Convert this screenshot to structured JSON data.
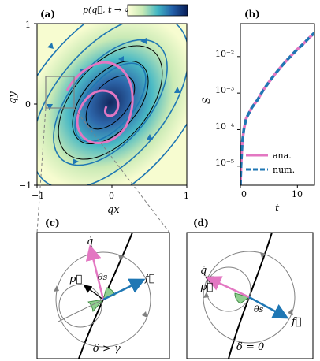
{
  "panels": {
    "a": {
      "label": "(a)",
      "colorbar_label": "p(q⃗, t → ∞)",
      "xlabel": "qx",
      "ylabel": "qy",
      "xticks": [
        "−1",
        "0",
        "1"
      ],
      "yticks": [
        "1",
        "0",
        "−1"
      ]
    },
    "b": {
      "label": "(b)",
      "xlabel": "t",
      "ylabel": "S",
      "xticks": [
        "0",
        "10"
      ],
      "yticks": [
        "10⁻²",
        "10⁻³",
        "10⁻⁴",
        "10⁻⁵"
      ],
      "legend": [
        {
          "label": "ana.",
          "color": "#e377c2",
          "style": "solid"
        },
        {
          "label": "num.",
          "color": "#1f77b4",
          "style": "dashed"
        }
      ]
    },
    "c": {
      "label": "(c)",
      "q_dot": "q̇",
      "p": "p⃗",
      "f": "f⃗",
      "theta": "θs",
      "condition": "δ > γ"
    },
    "d": {
      "label": "(d)",
      "q_dot": "q̇",
      "p": "p⃗",
      "f": "f⃗",
      "theta": "θs",
      "condition": "δ = 0"
    }
  },
  "colors": {
    "pink": "#e377c2",
    "blue": "#1f77b4",
    "green": "#8fce8f",
    "gray": "#808080"
  },
  "chart_data": {
    "type": "line",
    "title": "",
    "xlabel": "t",
    "ylabel": "S",
    "yscale": "log",
    "xlim": [
      0,
      13
    ],
    "ylim": [
      3e-06,
      0.08
    ],
    "series": [
      {
        "name": "ana.",
        "x": [
          0,
          0.1,
          0.3,
          0.6,
          1,
          2,
          3,
          4,
          5,
          6,
          7,
          8,
          9,
          10,
          11,
          12,
          13
        ],
        "y": [
          3e-06,
          1e-05,
          4e-05,
          0.0001,
          0.0002,
          0.0004,
          0.00065,
          0.0012,
          0.002,
          0.0032,
          0.005,
          0.0075,
          0.011,
          0.016,
          0.022,
          0.032,
          0.045
        ]
      },
      {
        "name": "num.",
        "x": [
          0,
          0.1,
          0.3,
          0.6,
          1,
          2,
          3,
          4,
          5,
          6,
          7,
          8,
          9,
          10,
          11,
          12,
          13
        ],
        "y": [
          3e-06,
          1e-05,
          4e-05,
          0.0001,
          0.0002,
          0.0004,
          0.00065,
          0.0012,
          0.002,
          0.0032,
          0.005,
          0.0075,
          0.011,
          0.016,
          0.022,
          0.032,
          0.045
        ]
      }
    ]
  }
}
